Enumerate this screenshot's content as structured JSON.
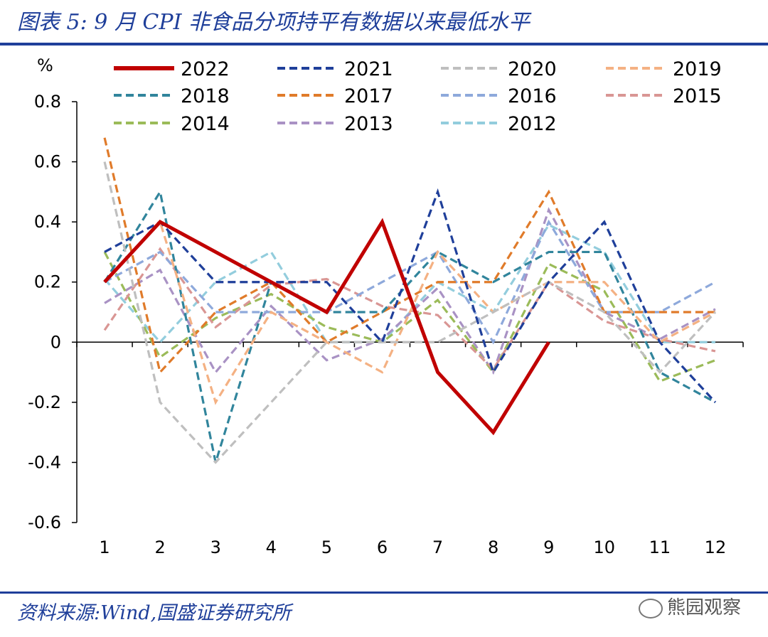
{
  "header": {
    "title": "图表 5:   9 月 CPI 非食品分项持平有数据以来最低水平"
  },
  "footer": {
    "source": "资料来源:Wind,国盛证券研究所",
    "watermark": "熊园观察"
  },
  "chart_data": {
    "type": "line",
    "title": "9 月 CPI 非食品分项持平有数据以来最低水平",
    "ylabel": "%",
    "xlabel": "",
    "ylim": [
      -0.6,
      0.8
    ],
    "yticks": [
      0.8,
      0.6,
      0.4,
      0.2,
      0,
      -0.2,
      -0.4,
      -0.6
    ],
    "ytick_labels": [
      "0.8",
      "0.6",
      "0.4",
      "0.2",
      "0",
      "-0.2",
      "-0.4",
      "-0.6"
    ],
    "categories": [
      "1",
      "2",
      "3",
      "4",
      "5",
      "6",
      "7",
      "8",
      "9",
      "10",
      "11",
      "12"
    ],
    "grid": false,
    "legend_position": "top",
    "series": [
      {
        "name": "2022",
        "color": "#c00000",
        "style": "solid",
        "values": [
          0.2,
          0.4,
          0.3,
          0.2,
          0.1,
          0.4,
          -0.1,
          -0.3,
          0.0,
          null,
          null,
          null
        ]
      },
      {
        "name": "2021",
        "color": "#1f3f9a",
        "style": "dashed",
        "values": [
          0.3,
          0.4,
          0.2,
          0.2,
          0.2,
          0.0,
          0.5,
          -0.1,
          0.2,
          0.4,
          0.0,
          -0.2
        ]
      },
      {
        "name": "2020",
        "color": "#bfbfbf",
        "style": "dashed",
        "values": [
          0.6,
          -0.2,
          -0.4,
          -0.2,
          0.0,
          0.0,
          0.0,
          0.1,
          0.2,
          0.1,
          -0.1,
          0.1
        ]
      },
      {
        "name": "2019",
        "color": "#f4b183",
        "style": "dashed",
        "values": [
          0.2,
          0.4,
          -0.2,
          0.1,
          0.0,
          -0.1,
          0.3,
          0.1,
          0.2,
          0.2,
          0.0,
          0.1
        ]
      },
      {
        "name": "2018",
        "color": "#31859c",
        "style": "dashed",
        "values": [
          0.2,
          0.5,
          -0.4,
          0.2,
          0.1,
          0.1,
          0.3,
          0.2,
          0.3,
          0.3,
          -0.1,
          -0.2
        ]
      },
      {
        "name": "2017",
        "color": "#e07b2a",
        "style": "dashed",
        "values": [
          0.68,
          -0.1,
          0.1,
          0.2,
          0.0,
          0.1,
          0.2,
          0.2,
          0.5,
          0.1,
          0.1,
          0.1
        ]
      },
      {
        "name": "2016",
        "color": "#8ea9db",
        "style": "dashed",
        "values": [
          0.2,
          0.3,
          0.1,
          0.1,
          0.1,
          0.2,
          0.3,
          0.0,
          0.4,
          0.1,
          0.1,
          0.2
        ]
      },
      {
        "name": "2015",
        "color": "#d99694",
        "style": "dashed",
        "values": [
          0.04,
          0.31,
          0.05,
          0.19,
          0.21,
          0.12,
          0.09,
          -0.09,
          0.2,
          0.07,
          0.01,
          -0.03
        ]
      },
      {
        "name": "2014",
        "color": "#9bbb59",
        "style": "dashed",
        "values": [
          0.3,
          -0.05,
          0.08,
          0.16,
          0.05,
          0.0,
          0.14,
          -0.1,
          0.26,
          0.17,
          -0.13,
          -0.06
        ]
      },
      {
        "name": "2013",
        "color": "#a992c4",
        "style": "dashed",
        "values": [
          0.13,
          0.24,
          -0.1,
          0.12,
          -0.06,
          0.01,
          0.18,
          -0.1,
          0.44,
          0.1,
          0.01,
          0.11
        ]
      },
      {
        "name": "2012",
        "color": "#93cddd",
        "style": "dashed",
        "values": [
          0.21,
          0.0,
          0.2,
          0.3,
          0.0,
          0.0,
          0.2,
          0.1,
          0.39,
          0.3,
          0.0,
          0.0
        ]
      }
    ]
  }
}
